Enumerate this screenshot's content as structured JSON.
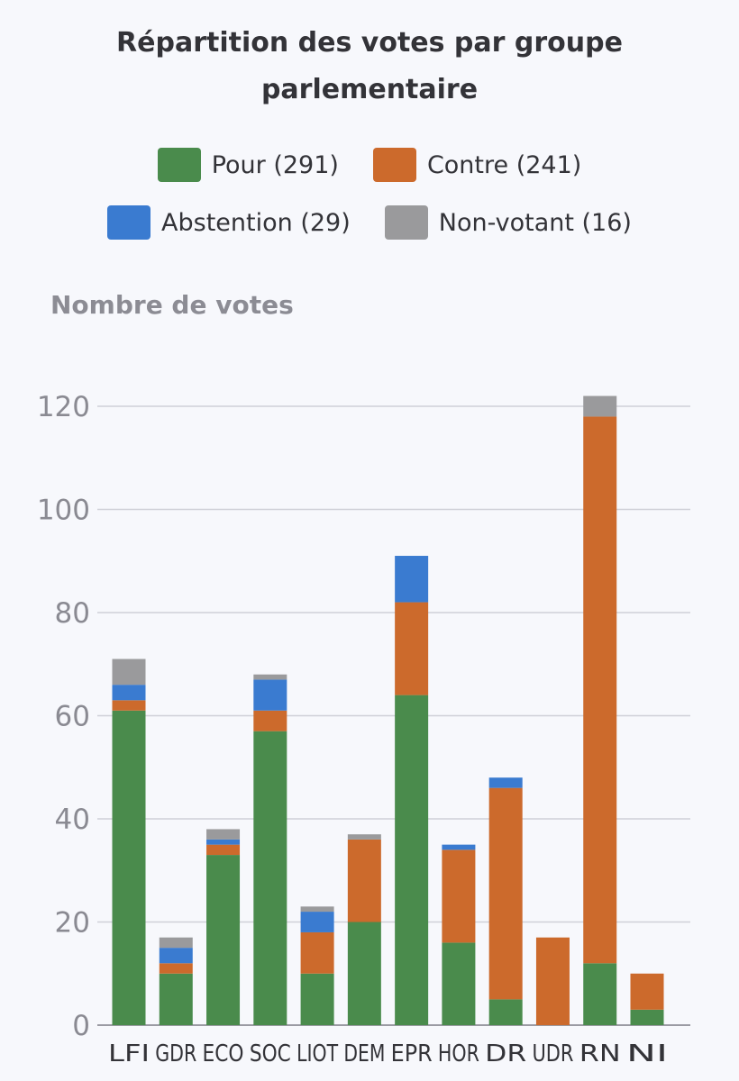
{
  "chart_data": {
    "type": "bar",
    "stacked": true,
    "title_line1": "Répartition des votes par groupe",
    "title_line2": "parlementaire",
    "ylabel": "Nombre de votes",
    "ylim": [
      0,
      120
    ],
    "yticks": [
      0,
      20,
      40,
      60,
      80,
      100,
      120
    ],
    "categories": [
      "LFI",
      "GDR",
      "ECO",
      "SOC",
      "LIOT",
      "DEM",
      "EPR",
      "HOR",
      "DR",
      "UDR",
      "RN",
      "NI"
    ],
    "series": [
      {
        "name": "Pour (291)",
        "color": "#4a8b4c",
        "values": [
          61,
          10,
          33,
          57,
          10,
          20,
          64,
          16,
          5,
          0,
          12,
          3
        ]
      },
      {
        "name": "Contre (241)",
        "color": "#cc6a2c",
        "values": [
          2,
          2,
          2,
          4,
          8,
          16,
          18,
          18,
          41,
          17,
          106,
          7
        ]
      },
      {
        "name": "Abstention (29)",
        "color": "#3a7bd0",
        "values": [
          3,
          3,
          1,
          6,
          4,
          0,
          9,
          1,
          2,
          0,
          0,
          0
        ]
      },
      {
        "name": "Non-votant (16)",
        "color": "#9a9a9c",
        "values": [
          5,
          2,
          2,
          1,
          1,
          1,
          0,
          0,
          0,
          0,
          4,
          0
        ]
      }
    ],
    "legend_position": "top",
    "grid": true
  }
}
